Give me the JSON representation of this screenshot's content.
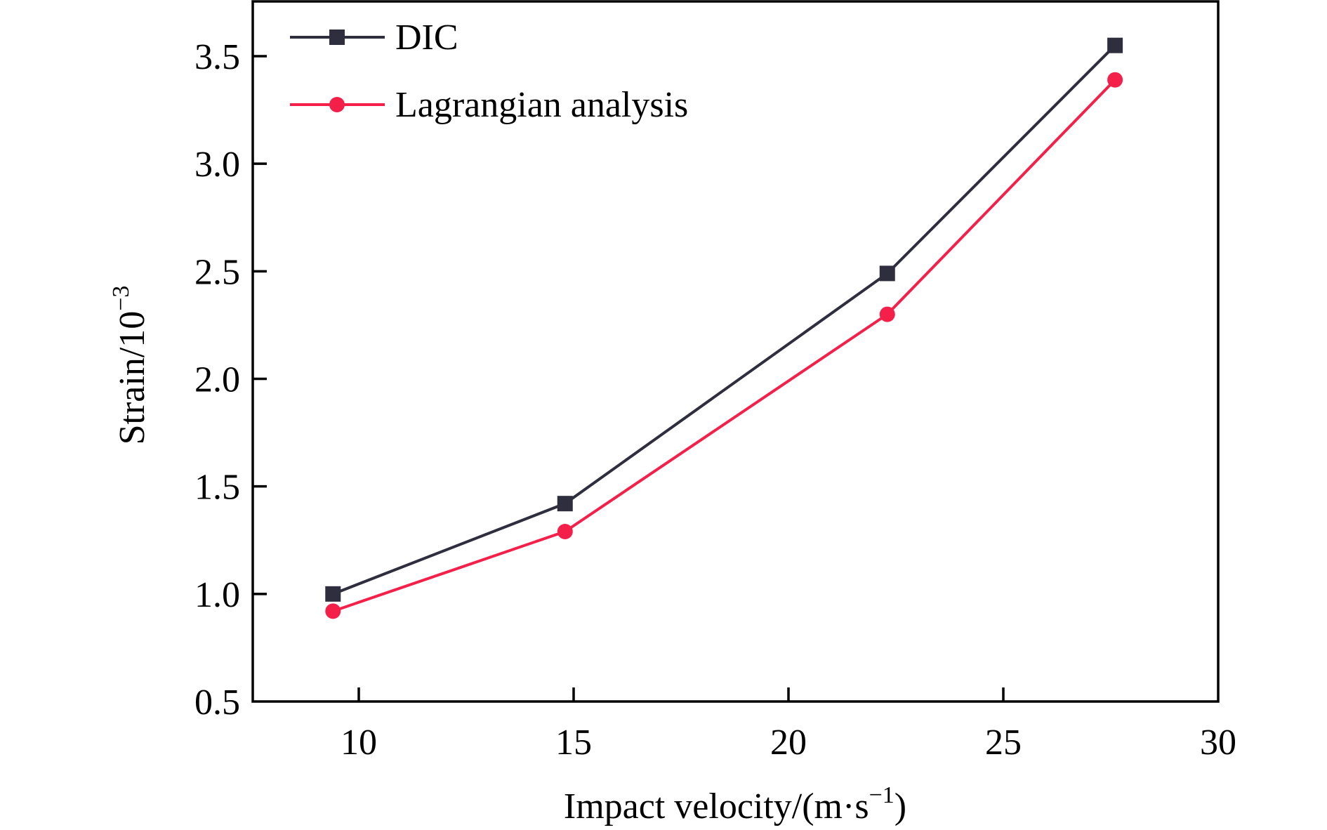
{
  "chart_data": {
    "type": "line",
    "title": "",
    "xlabel": "Impact velocity/(m·s",
    "xlabel_sup": "−1",
    "xlabel_tail": ")",
    "ylabel": "Strain/10",
    "ylabel_sup": "−3",
    "xlim": [
      7.5,
      30
    ],
    "ylim": [
      0.5,
      3.75
    ],
    "xticks": [
      10,
      15,
      20,
      25,
      30
    ],
    "xtick_labels": [
      "10",
      "15",
      "20",
      "25",
      "30"
    ],
    "yticks": [
      0.5,
      1.0,
      1.5,
      2.0,
      2.5,
      3.0,
      3.5
    ],
    "ytick_labels": [
      "0.5",
      "1.0",
      "1.5",
      "2.0",
      "2.5",
      "3.0",
      "3.5"
    ],
    "grid": false,
    "legend_position": "top-left",
    "series": [
      {
        "name": "DIC",
        "marker": "square",
        "color": "#2e2e3e",
        "x": [
          9.4,
          14.8,
          22.3,
          27.6
        ],
        "y": [
          1.0,
          1.42,
          2.49,
          3.55
        ]
      },
      {
        "name": "Lagrangian analysis",
        "marker": "circle",
        "color": "#f5204a",
        "x": [
          9.4,
          14.8,
          22.3,
          27.6
        ],
        "y": [
          0.92,
          1.29,
          2.3,
          3.39
        ]
      }
    ]
  }
}
